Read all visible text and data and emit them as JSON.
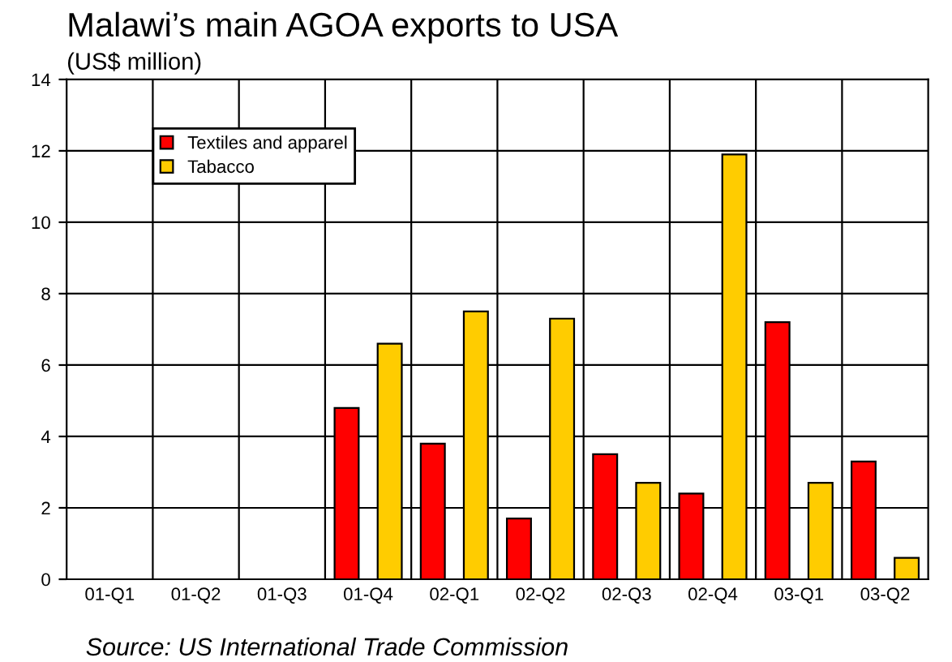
{
  "chart_data": {
    "type": "bar",
    "title": "Malawi’s main AGOA exports to USA",
    "subtitle": "(US$ million)",
    "categories": [
      "01-Q1",
      "01-Q2",
      "01-Q3",
      "01-Q4",
      "02-Q1",
      "02-Q2",
      "02-Q3",
      "02-Q4",
      "03-Q1",
      "03-Q2"
    ],
    "series": [
      {
        "name": "Textiles and apparel",
        "color": "#ff0000",
        "values": [
          null,
          null,
          null,
          4.8,
          3.8,
          1.7,
          3.5,
          2.4,
          7.2,
          3.3
        ]
      },
      {
        "name": "Tabacco",
        "color": "#ffcc00",
        "values": [
          null,
          null,
          null,
          6.6,
          7.5,
          7.3,
          2.7,
          11.9,
          2.7,
          0.6
        ]
      }
    ],
    "ylim": [
      0,
      14
    ],
    "yticks": [
      0,
      2,
      4,
      6,
      8,
      10,
      12,
      14
    ],
    "grid": true,
    "legend": "top left",
    "annotations": [
      "Source: US International Trade Commission"
    ]
  }
}
